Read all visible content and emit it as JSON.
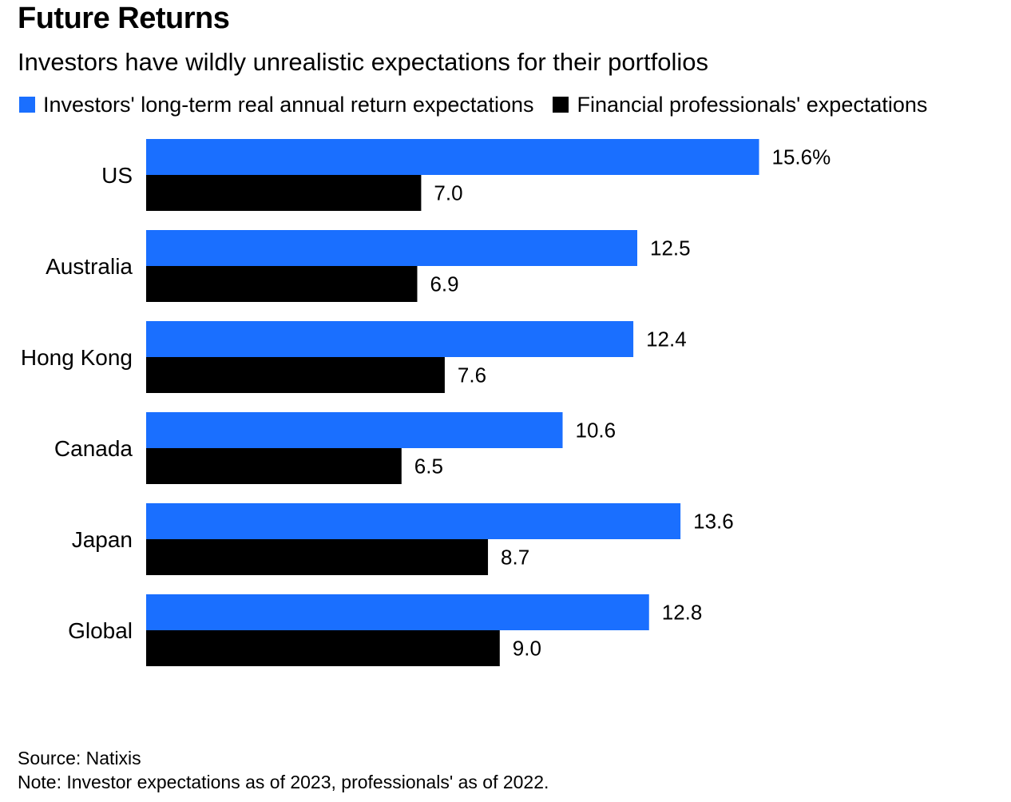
{
  "chart_data": {
    "type": "bar",
    "orientation": "horizontal",
    "title": "Future Returns",
    "subtitle": "Investors have wildly unrealistic expectations for their portfolios",
    "categories": [
      "US",
      "Australia",
      "Hong Kong",
      "Canada",
      "Japan",
      "Global"
    ],
    "series": [
      {
        "name": "Investors' long-term real annual return expectations",
        "color": "#1a6fff",
        "values": [
          15.6,
          12.5,
          12.4,
          10.6,
          13.6,
          12.8
        ],
        "labels": [
          "15.6%",
          "12.5",
          "12.4",
          "10.6",
          "13.6",
          "12.8"
        ]
      },
      {
        "name": "Financial professionals' expectations",
        "color": "#000000",
        "values": [
          7.0,
          6.9,
          7.6,
          6.5,
          8.7,
          9.0
        ],
        "labels": [
          "7.0",
          "6.9",
          "7.6",
          "6.5",
          "8.7",
          "9.0"
        ]
      }
    ],
    "xlim": [
      0,
      25
    ],
    "grid": false,
    "legend_position": "top-left",
    "source": "Source: Natixis",
    "note": "Note: Investor expectations as of 2023, professionals' as of 2022."
  }
}
